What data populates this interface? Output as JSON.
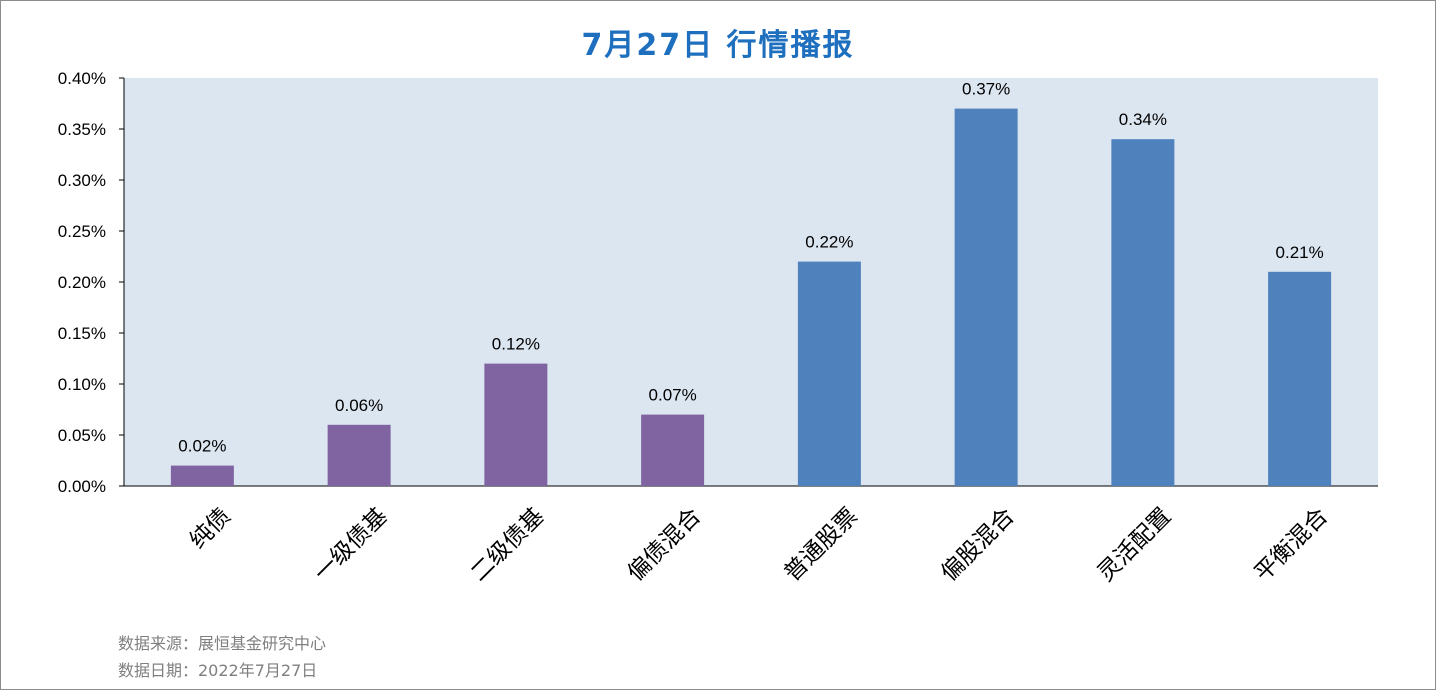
{
  "title": "7月27日  行情播报",
  "source": {
    "line1": "数据来源：展恒基金研究中心",
    "line2": "数据日期：2022年7月27日"
  },
  "colors": {
    "plot_bg": "#dce6f1",
    "bond": "#8064a2",
    "equity": "#4f81bd",
    "title": "#1f6fbf"
  },
  "chart_data": {
    "type": "bar",
    "title": "7月27日  行情播报",
    "categories": [
      "纯债",
      "一级债基",
      "二级债基",
      "偏债混合",
      "普通股票",
      "偏股混合",
      "灵活配置",
      "平衡混合"
    ],
    "values": [
      0.02,
      0.06,
      0.12,
      0.07,
      0.22,
      0.37,
      0.34,
      0.21
    ],
    "value_labels": [
      "0.02%",
      "0.06%",
      "0.12%",
      "0.07%",
      "0.22%",
      "0.37%",
      "0.34%",
      "0.21%"
    ],
    "bar_colors": [
      "#8064a2",
      "#8064a2",
      "#8064a2",
      "#8064a2",
      "#4f81bd",
      "#4f81bd",
      "#4f81bd",
      "#4f81bd"
    ],
    "y_ticks": [
      "0.00%",
      "0.05%",
      "0.10%",
      "0.15%",
      "0.20%",
      "0.25%",
      "0.30%",
      "0.35%",
      "0.40%"
    ],
    "ylim": [
      0,
      0.4
    ],
    "xlabel": "",
    "ylabel": "",
    "grid": false,
    "legend": "none"
  }
}
